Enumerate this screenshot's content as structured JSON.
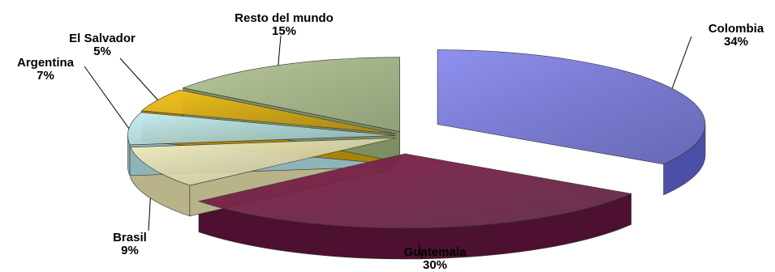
{
  "chart_data": {
    "type": "pie",
    "style": "3d-exploded",
    "slices": [
      {
        "name": "Colombia",
        "value": 34,
        "label": "34%",
        "color": "#8f91f0",
        "side_color": "#4c4fa8"
      },
      {
        "name": "Guatemala",
        "value": 30,
        "label": "30%",
        "color": "#8a2a52",
        "side_color": "#4d1030"
      },
      {
        "name": "Brasil",
        "value": 9,
        "label": "9%",
        "color": "#f4efc4",
        "side_color": "#b8b388"
      },
      {
        "name": "Argentina",
        "value": 7,
        "label": "7%",
        "color": "#c7eef2",
        "side_color": "#8fb4b8"
      },
      {
        "name": "El Salvador",
        "value": 5,
        "label": "5%",
        "color": "#f3c21b",
        "side_color": "#a8830a"
      },
      {
        "name": "Resto del mundo",
        "value": 15,
        "label": "15%",
        "color": "#b9c99a",
        "side_color": "#7e8f62"
      }
    ]
  }
}
